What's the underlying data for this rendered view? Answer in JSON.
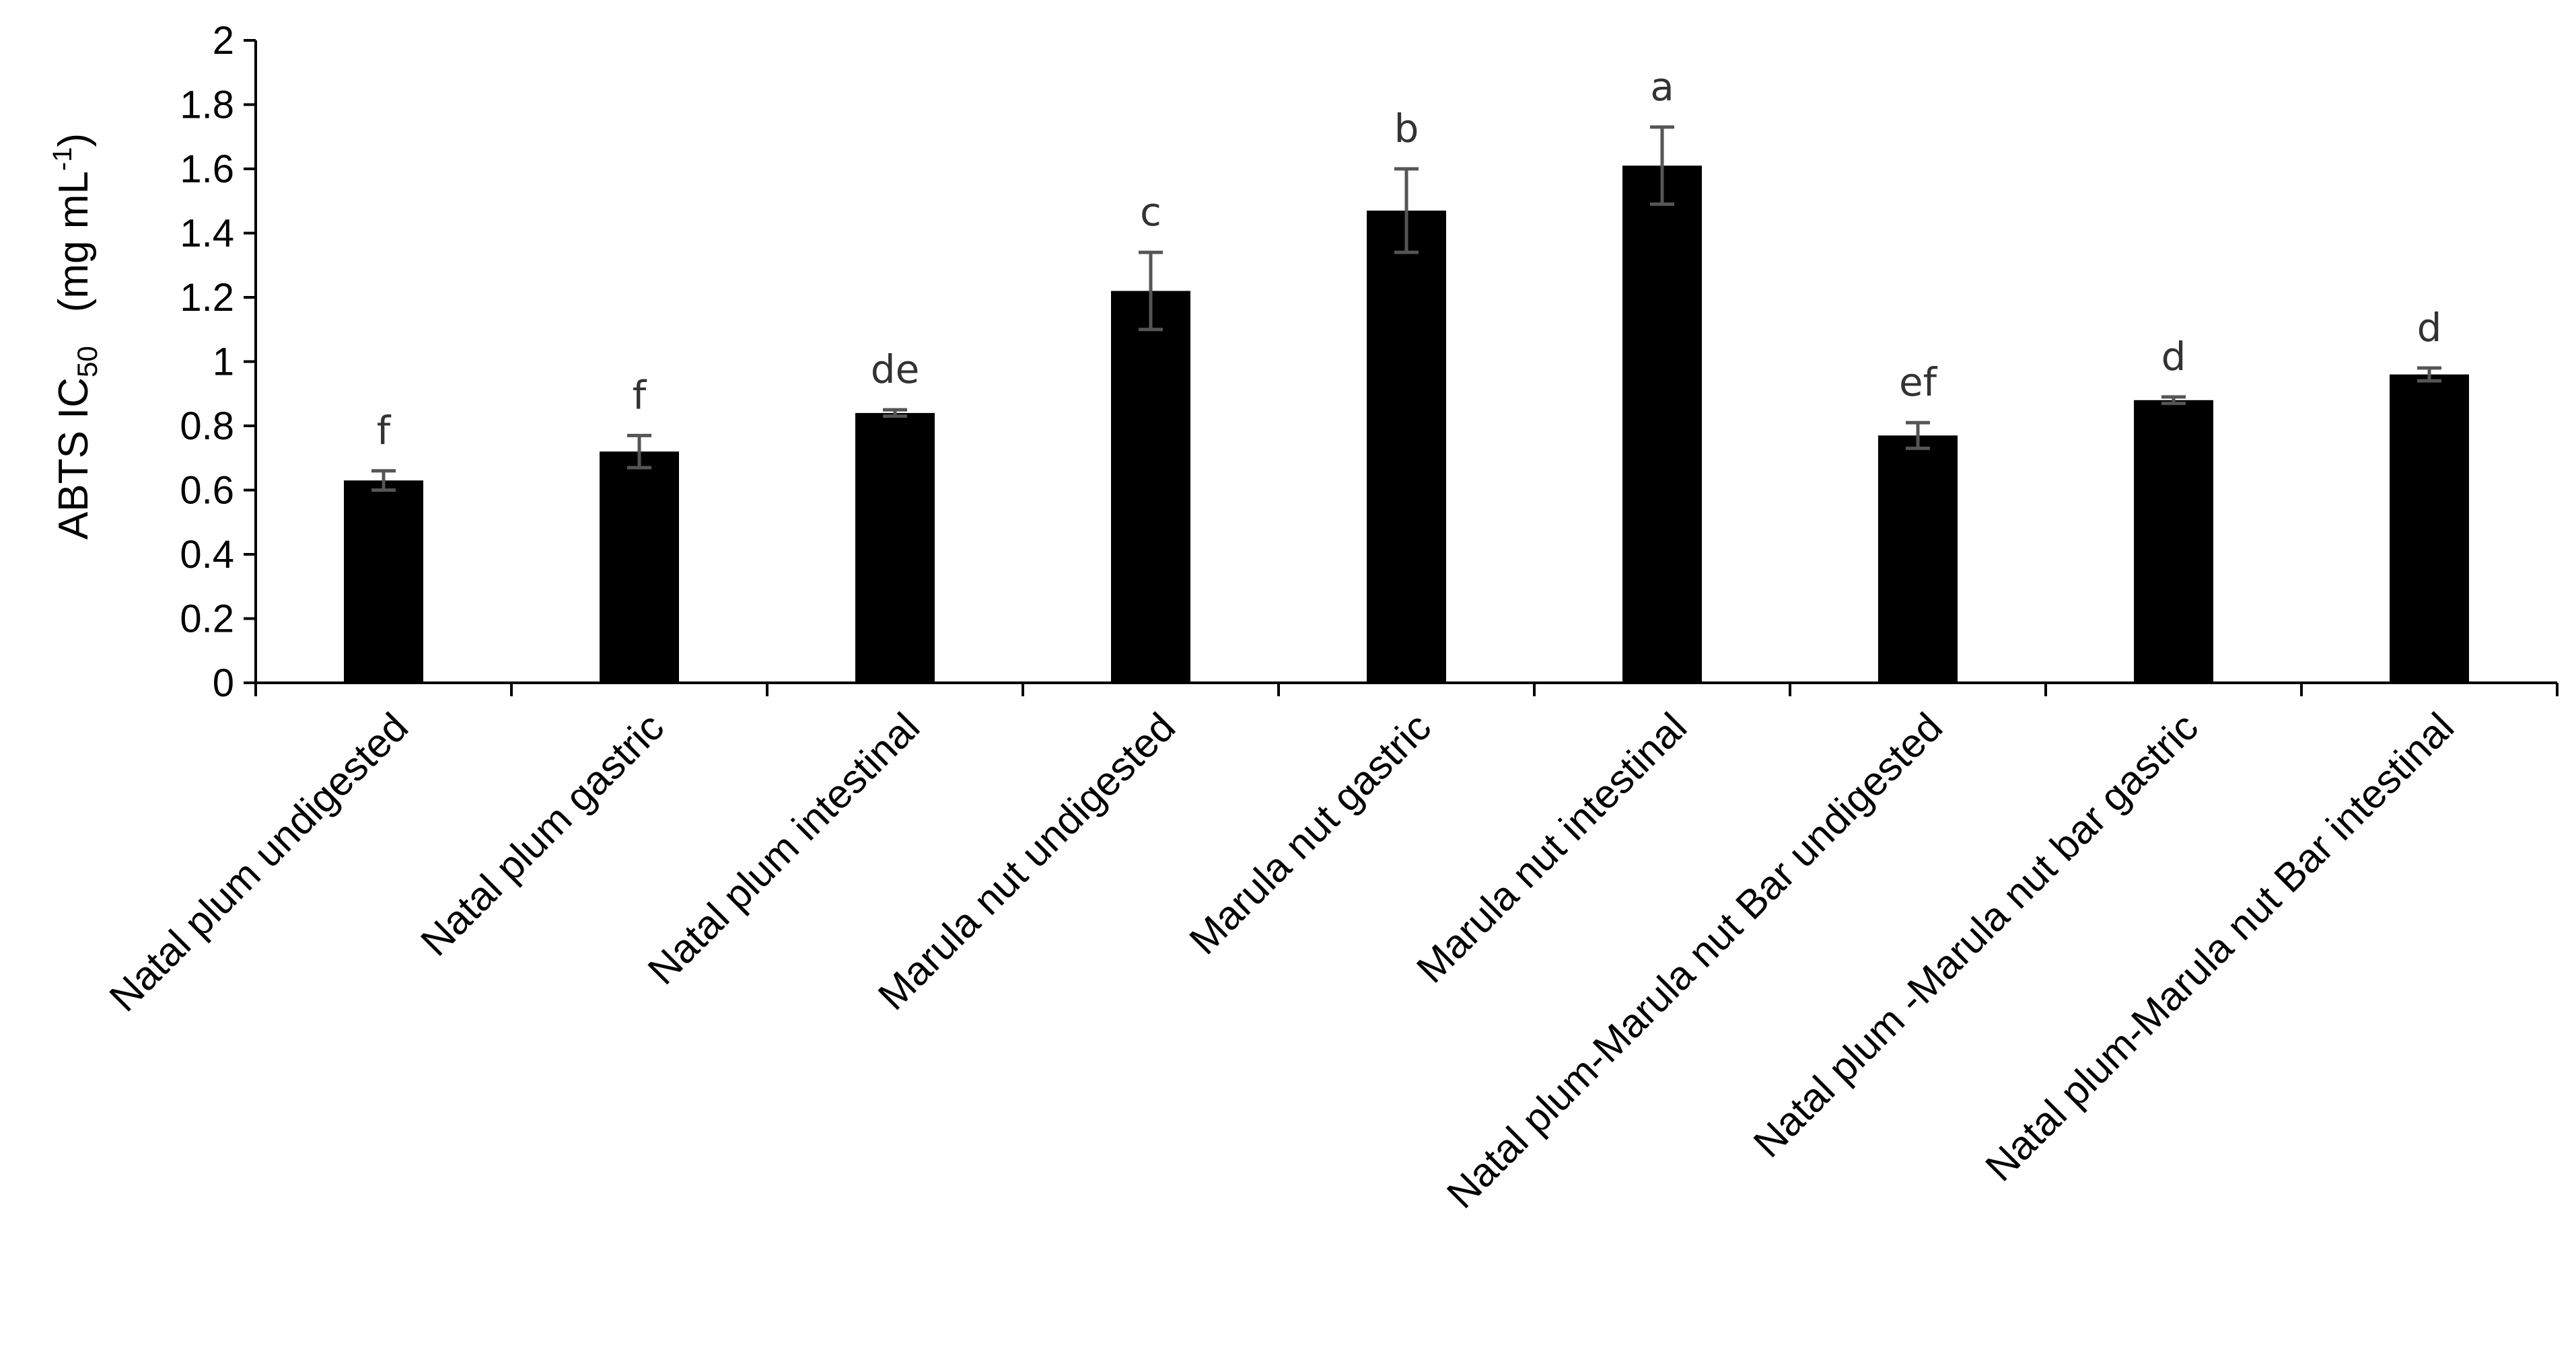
{
  "chart_data": {
    "type": "bar",
    "ylabel_main": "ABTS IC",
    "ylabel_sub": "50",
    "ylabel_units_pre": "(mg mL",
    "ylabel_units_sup": "-1",
    "ylabel_units_post": ")",
    "ylim": [
      0,
      2
    ],
    "yticks": [
      "0",
      "0.2",
      "0.4",
      "0.6",
      "0.8",
      "1",
      "1.2",
      "1.4",
      "1.6",
      "1.8",
      "2"
    ],
    "ytick_values": [
      0,
      0.2,
      0.4,
      0.6,
      0.8,
      1.0,
      1.2,
      1.4,
      1.6,
      1.8,
      2.0
    ],
    "categories": [
      "Natal plum undigested",
      "Natal plum  gastric",
      "Natal plum intestinal",
      "Marula nut undigested",
      "Marula nut gastric",
      "Marula nut intestinal",
      "Natal plum-Marula nut Bar undigested",
      "Natal plum -Marula nut bar  gastric",
      "Natal plum-Marula nut Bar intestinal"
    ],
    "values": [
      0.63,
      0.72,
      0.84,
      1.22,
      1.47,
      1.61,
      0.77,
      0.88,
      0.96
    ],
    "errors": [
      0.03,
      0.05,
      0.01,
      0.12,
      0.13,
      0.12,
      0.04,
      0.01,
      0.02
    ],
    "significance": [
      "f",
      "f",
      "de",
      "c",
      "b",
      "a",
      "ef",
      "d",
      "d"
    ],
    "bar_color": "#000000",
    "error_color": "#555555",
    "grid": false,
    "legend": "none"
  }
}
